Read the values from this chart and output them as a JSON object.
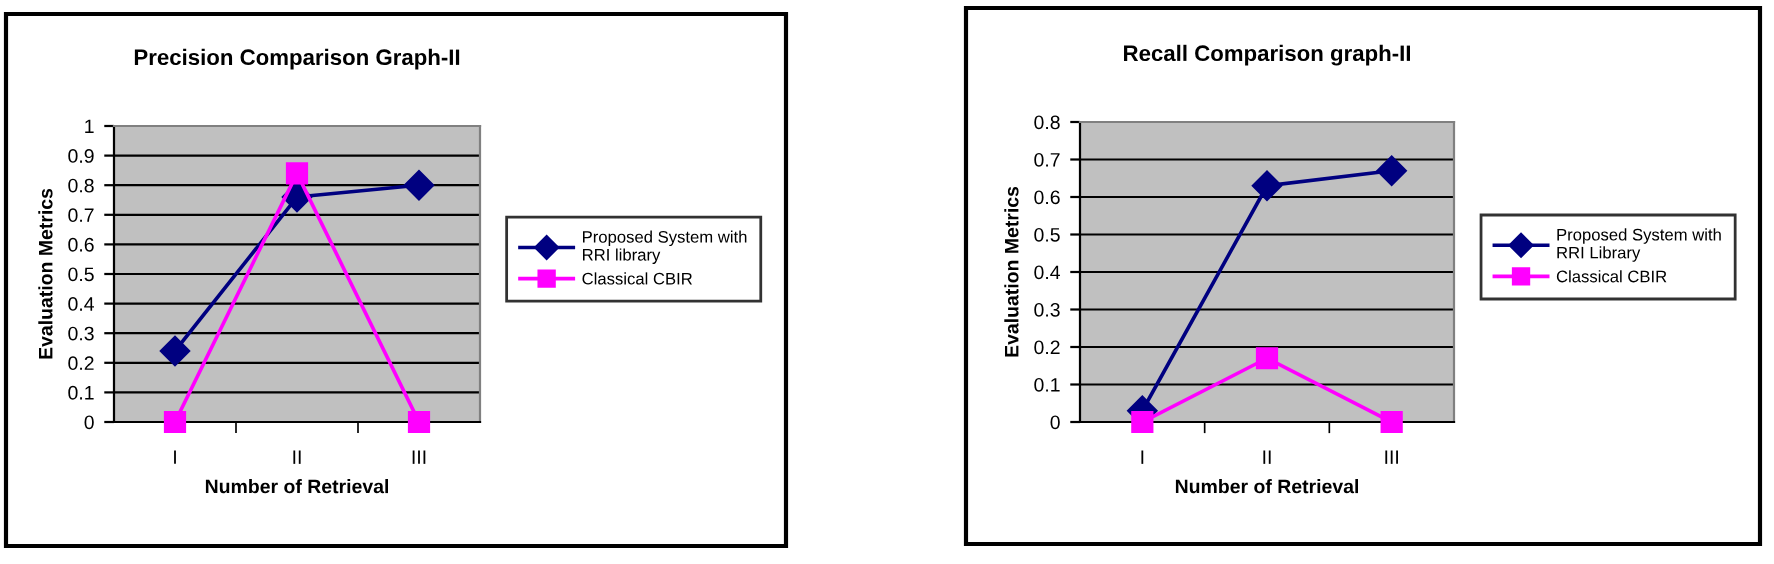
{
  "chart_data": [
    {
      "type": "line",
      "title": "Precision Comparison Graph-II",
      "xlabel": "Number of Retrieval",
      "ylabel": "Evaluation Metrics",
      "categories": [
        "I",
        "II",
        "III"
      ],
      "series": [
        {
          "name": "Proposed System with\nRRI library",
          "color": "#000080",
          "marker": "diamond",
          "values": [
            0.24,
            0.76,
            0.8
          ]
        },
        {
          "name": "Classical CBIR",
          "color": "#ff00ff",
          "marker": "square",
          "values": [
            0,
            0.84,
            0
          ]
        }
      ],
      "ylim": [
        0,
        1
      ],
      "yticks": [
        0,
        0.1,
        0.2,
        0.3,
        0.4,
        0.5,
        0.6,
        0.7,
        0.8,
        0.9,
        1
      ],
      "grid": "y",
      "legend": "right"
    },
    {
      "type": "line",
      "title": "Recall Comparison graph-II",
      "xlabel": "Number of Retrieval",
      "ylabel": "Evaluation Metrics",
      "categories": [
        "I",
        "II",
        "III"
      ],
      "series": [
        {
          "name": "Proposed System with\nRRI Library",
          "color": "#000080",
          "marker": "diamond",
          "values": [
            0.03,
            0.63,
            0.67
          ]
        },
        {
          "name": "Classical CBIR",
          "color": "#ff00ff",
          "marker": "square",
          "values": [
            0,
            0.17,
            0
          ]
        }
      ],
      "ylim": [
        0,
        0.8
      ],
      "yticks": [
        0,
        0.1,
        0.2,
        0.3,
        0.4,
        0.5,
        0.6,
        0.7,
        0.8
      ],
      "grid": "y",
      "legend": "right"
    }
  ]
}
